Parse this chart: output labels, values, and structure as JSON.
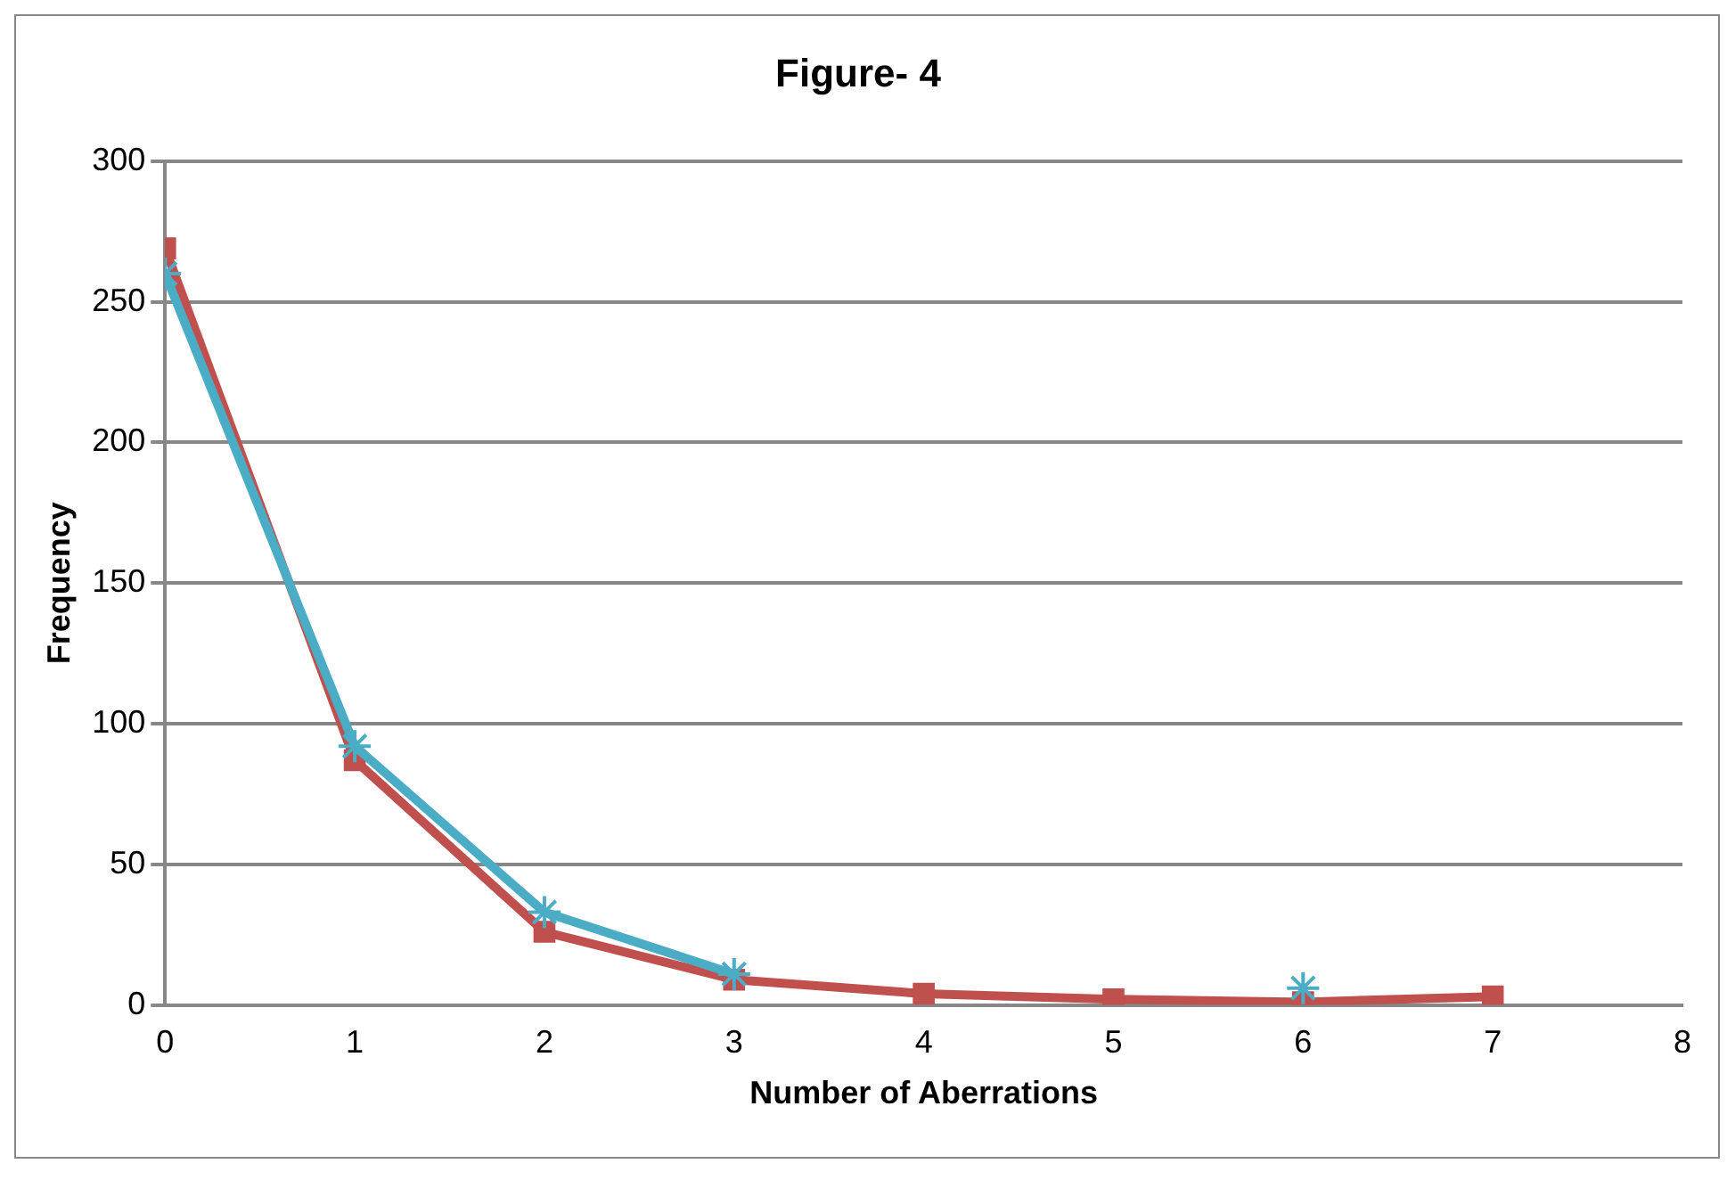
{
  "chart_data": {
    "type": "line",
    "title": "Figure- 4",
    "xlabel": "Number of Aberrations",
    "ylabel": "Frequency",
    "x": [
      0,
      1,
      2,
      3,
      4,
      5,
      6,
      7
    ],
    "series": [
      {
        "color": "#c0504d",
        "marker": "square",
        "values": [
          269,
          87,
          26,
          9,
          4,
          2,
          1,
          3
        ]
      },
      {
        "color": "#4bacc6",
        "marker": "cross",
        "values": [
          260,
          92,
          33,
          11,
          null,
          null,
          6,
          null
        ]
      }
    ],
    "xlim": [
      0,
      8
    ],
    "xticks": [
      0,
      1,
      2,
      3,
      4,
      5,
      6,
      7,
      8
    ],
    "ylim": [
      0,
      300
    ],
    "yticks": [
      0,
      50,
      100,
      150,
      200,
      250,
      300
    ],
    "grid": "y",
    "legend": false
  }
}
